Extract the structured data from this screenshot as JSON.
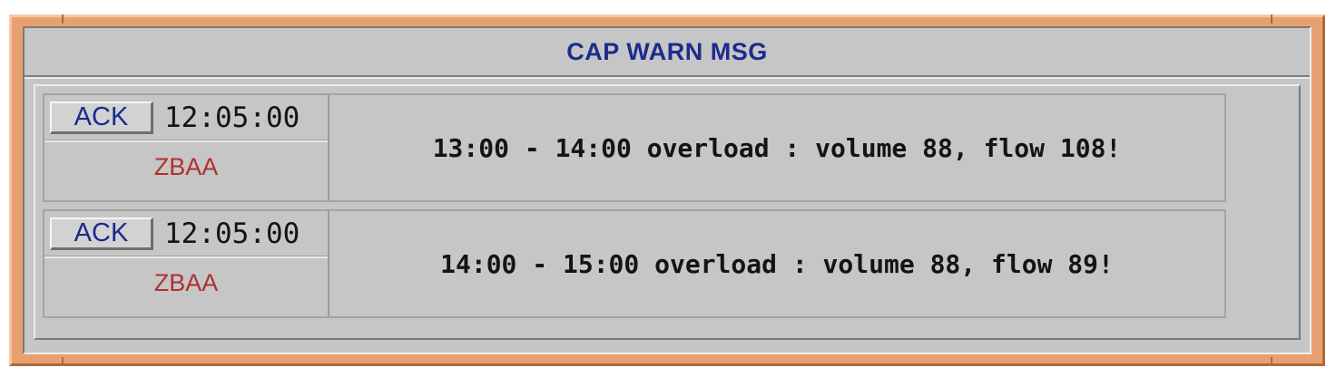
{
  "window": {
    "title": "CAP WARN MSG"
  },
  "colors": {
    "frame": "#e8a070",
    "panel": "#c6c6c6",
    "title_text": "#1c2c8c",
    "station_text": "#b03030"
  },
  "messages": [
    {
      "ack_label": "ACK",
      "time": "12:05:00",
      "station": "ZBAA",
      "text": "13:00 - 14:00 overload : volume 88, flow 108!"
    },
    {
      "ack_label": "ACK",
      "time": "12:05:00",
      "station": "ZBAA",
      "text": "14:00 - 15:00 overload : volume 88, flow 89!"
    }
  ]
}
